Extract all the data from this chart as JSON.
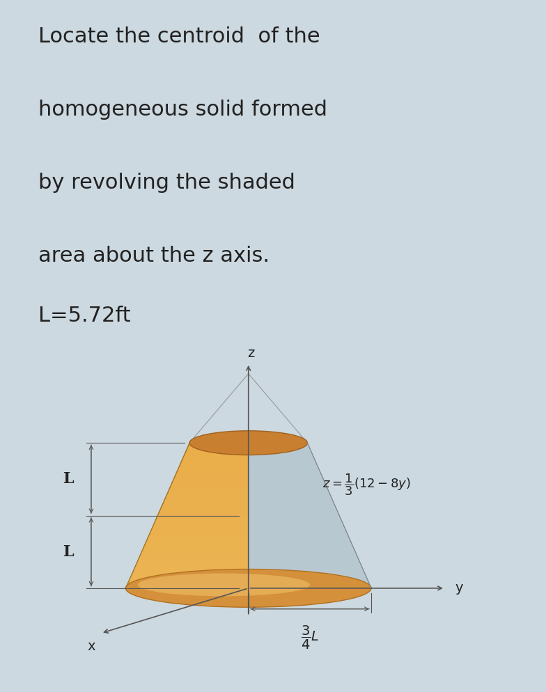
{
  "bg_color": "#cdd9e0",
  "fig_bg_color": "#cdd9e0",
  "box_bg_color": "#e8eef2",
  "title_lines": [
    "Locate the centroid  of the",
    "homogeneous solid formed",
    "by revolving the shaded",
    "area about the z axis."
  ],
  "L_label": "L=5.72ft",
  "title_fontsize": 22,
  "L_fontsize": 22,
  "cone_color_front": "#e8a840",
  "cone_color_back": "#b8c8d0",
  "cone_top_color": "#d4903a",
  "cone_gradient_light": "#f5c870",
  "cone_shadow": "#c09030",
  "axes_color": "#555555",
  "dim_color": "#555555",
  "text_color": "#222222",
  "formula_text": "$z = \\dfrac{1}{3}(12 - 8y)$",
  "label_L_upper": "L",
  "label_L_lower": "L",
  "label_x": "x",
  "label_y": "y",
  "label_z": "z",
  "label_34L": "$\\dfrac{3}{4}L$"
}
